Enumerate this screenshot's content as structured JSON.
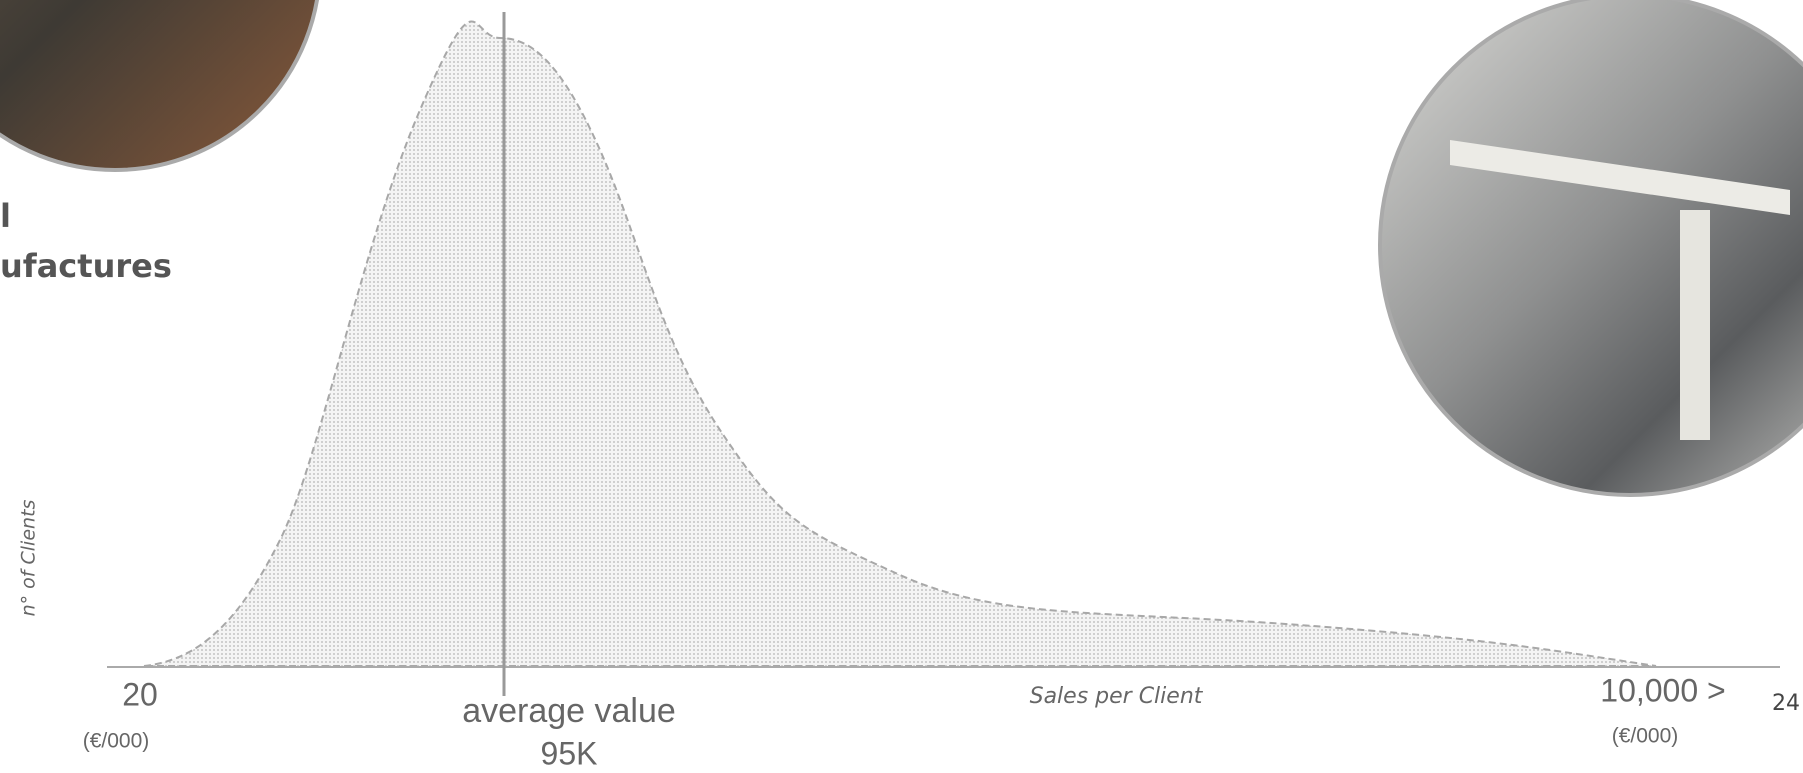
{
  "left_caption": {
    "line1": "l",
    "line2": "ufactures"
  },
  "chart": {
    "y_axis_label": "n° of Clients",
    "x_axis_label": "Sales per Client",
    "min_label": "20",
    "min_unit": "(€/000)",
    "max_label": "10,000 >",
    "max_unit": "(€/000)",
    "average_label": "average value",
    "average_value": "95K"
  },
  "page_number": "24"
}
